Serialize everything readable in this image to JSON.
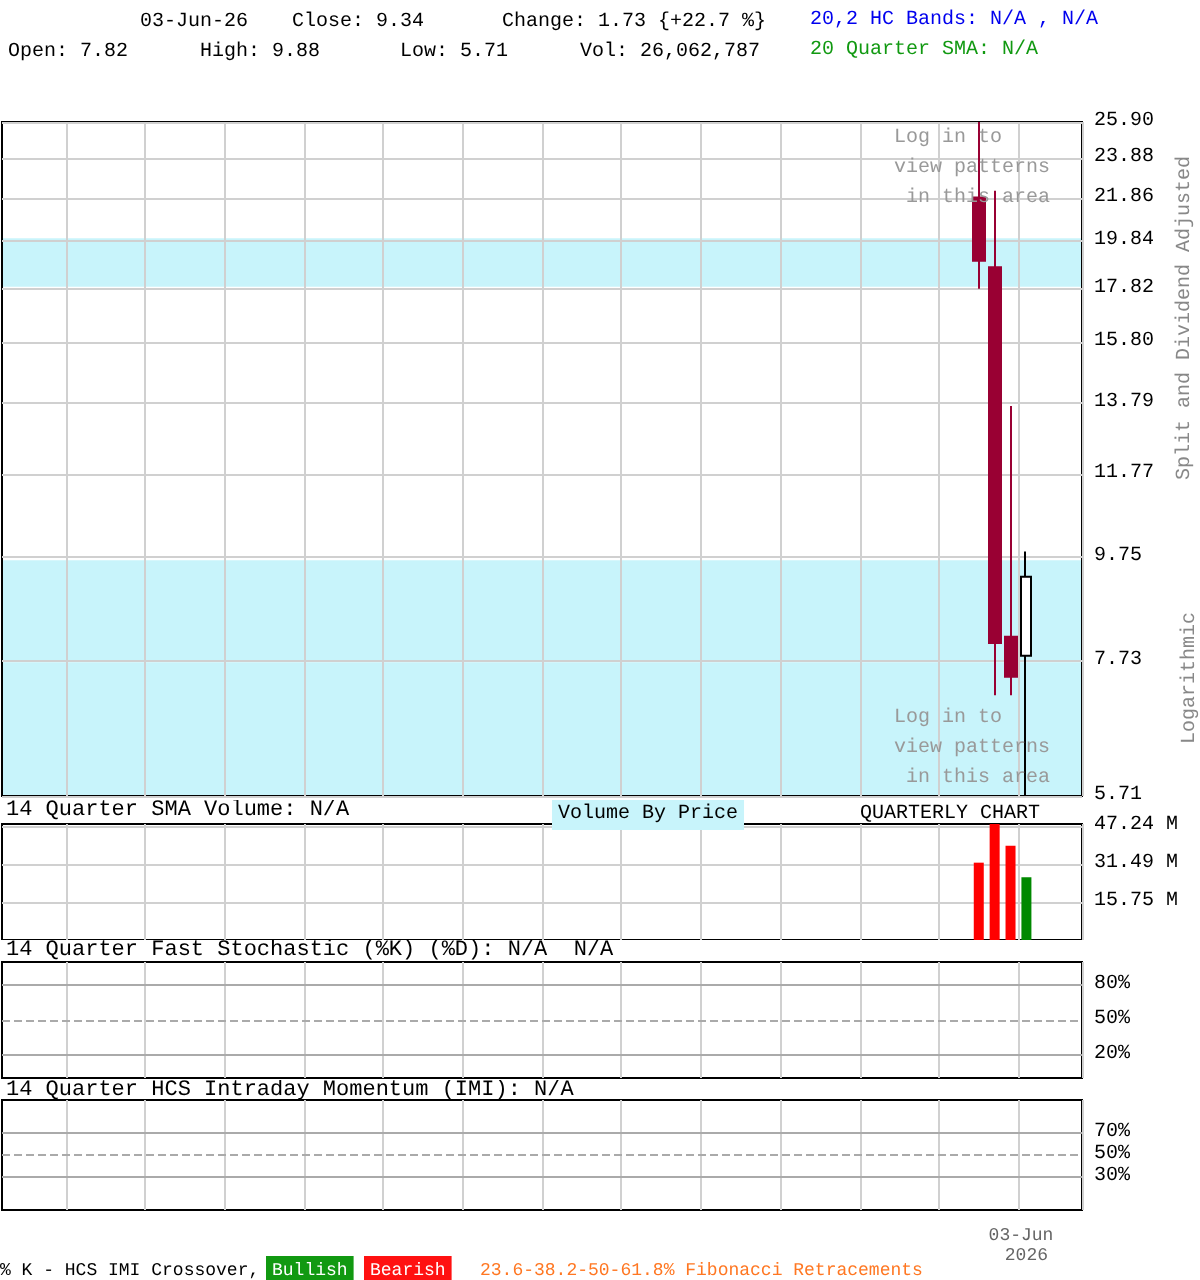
{
  "chart_data": [
    {
      "type": "candlestick",
      "log": true,
      "grid": true,
      "ylabel": "Split and Dividend Adjusted",
      "categories": [
        null,
        null,
        null,
        null,
        null,
        null,
        null,
        null,
        null,
        null,
        null,
        null,
        null,
        null,
        null,
        null,
        null,
        null,
        null,
        null,
        null,
        null,
        null,
        null,
        null,
        null,
        null,
        null,
        null,
        null,
        null,
        null,
        null,
        null,
        null,
        null,
        null,
        null,
        null,
        null,
        null,
        null,
        null,
        null,
        null,
        null,
        null,
        null,
        null,
        null,
        null,
        null,
        null,
        null,
        null,
        null,
        null,
        null,
        null,
        null,
        null,
        null,
        null,
        null,
        null,
        null,
        null,
        null
      ],
      "ohlc": [
        null,
        null,
        null,
        null,
        null,
        null,
        null,
        null,
        null,
        null,
        null,
        null,
        null,
        null,
        null,
        null,
        null,
        null,
        null,
        null,
        null,
        null,
        null,
        null,
        null,
        null,
        null,
        null,
        null,
        null,
        null,
        null,
        null,
        null,
        null,
        null,
        null,
        null,
        null,
        null,
        null,
        null,
        null,
        null,
        null,
        null,
        null,
        null,
        null,
        null,
        null,
        null,
        null,
        null,
        null,
        null,
        null,
        null,
        null,
        null,
        null,
        [
          21.86,
          25.9,
          17.82,
          18.97
        ],
        [
          18.7,
          22.2,
          7.16,
          8.05
        ],
        [
          8.16,
          13.7,
          7.16,
          7.46
        ],
        [
          7.82,
          9.88,
          5.71,
          9.34
        ],
        null,
        null,
        null
      ],
      "colors": [
        null,
        null,
        null,
        null,
        null,
        null,
        null,
        null,
        null,
        null,
        null,
        null,
        null,
        null,
        null,
        null,
        null,
        null,
        null,
        null,
        null,
        null,
        null,
        null,
        null,
        null,
        null,
        null,
        null,
        null,
        null,
        null,
        null,
        null,
        null,
        null,
        null,
        null,
        null,
        null,
        null,
        null,
        null,
        null,
        null,
        null,
        null,
        null,
        null,
        null,
        null,
        null,
        null,
        null,
        null,
        null,
        null,
        null,
        null,
        null,
        null,
        "#990033",
        "#990033",
        "#990033",
        "#ffffff",
        null,
        null,
        null
      ],
      "ylim": [
        5.71,
        25.9
      ],
      "yticks": [
        {
          "value": 5.71,
          "label": "5.71"
        },
        {
          "value": 7.73,
          "label": "7.73"
        },
        {
          "value": 9.75,
          "label": "9.75"
        },
        {
          "value": 11.77,
          "label": "11.77"
        },
        {
          "value": 13.79,
          "label": "13.79"
        },
        {
          "value": 15.8,
          "label": "15.80"
        },
        {
          "value": 17.82,
          "label": "17.82"
        },
        {
          "value": 19.84,
          "label": "19.84"
        },
        {
          "value": 21.86,
          "label": "21.86"
        },
        {
          "value": 23.88,
          "label": "23.88"
        },
        {
          "value": 25.9,
          "label": "25.90"
        }
      ],
      "bands": [
        {
          "axis": "y",
          "from": 17.9,
          "to": 19.96,
          "color": "#c8f4fb"
        },
        {
          "axis": "y",
          "from": 7.71,
          "to": 9.69,
          "color": "#c8f4fb"
        },
        {
          "axis": "y",
          "from": 5.71,
          "to": 7.71,
          "color": "#c8f4fb"
        }
      ],
      "annotations": [
        "03-Jun-26",
        "Close: 9.34",
        "Change: 1.73 {+22.7 %}",
        "Open: 7.82",
        "High: 9.88",
        "Low: 5.71",
        "Vol: 26,062,787",
        "20,2 HC Bands: N/A , N/A",
        "20 Quarter SMA: N/A",
        "Log in to view patterns in this area",
        "Log in to view patterns in this area",
        "Logarithmic"
      ]
    },
    {
      "type": "bar",
      "title": "14 Quarter SMA Volume: N/A",
      "grid": true,
      "categories": [
        null,
        null,
        null,
        null,
        null,
        null,
        null,
        null,
        null,
        null,
        null,
        null,
        null,
        null,
        null,
        null,
        null,
        null,
        null,
        null,
        null,
        null,
        null,
        null,
        null,
        null,
        null,
        null,
        null,
        null,
        null,
        null,
        null,
        null,
        null,
        null,
        null,
        null,
        null,
        null,
        null,
        null,
        null,
        null,
        null,
        null,
        null,
        null,
        null,
        null,
        null,
        null,
        null,
        null,
        null,
        null,
        null,
        null,
        null,
        null,
        null,
        null,
        null,
        null,
        null,
        null,
        null,
        null
      ],
      "values": [
        null,
        null,
        null,
        null,
        null,
        null,
        null,
        null,
        null,
        null,
        null,
        null,
        null,
        null,
        null,
        null,
        null,
        null,
        null,
        null,
        null,
        null,
        null,
        null,
        null,
        null,
        null,
        null,
        null,
        null,
        null,
        null,
        null,
        null,
        null,
        null,
        null,
        null,
        null,
        null,
        null,
        null,
        null,
        null,
        null,
        null,
        null,
        null,
        null,
        null,
        null,
        null,
        null,
        null,
        null,
        null,
        null,
        null,
        null,
        null,
        null,
        32,
        48,
        39,
        26,
        null,
        null,
        null
      ],
      "colors": [
        null,
        null,
        null,
        null,
        null,
        null,
        null,
        null,
        null,
        null,
        null,
        null,
        null,
        null,
        null,
        null,
        null,
        null,
        null,
        null,
        null,
        null,
        null,
        null,
        null,
        null,
        null,
        null,
        null,
        null,
        null,
        null,
        null,
        null,
        null,
        null,
        null,
        null,
        null,
        null,
        null,
        null,
        null,
        null,
        null,
        null,
        null,
        null,
        null,
        null,
        null,
        null,
        null,
        null,
        null,
        null,
        null,
        null,
        null,
        null,
        null,
        "#ff0000",
        "#ff0000",
        "#ff0000",
        "#008800",
        null,
        null,
        null
      ],
      "ylim": [
        0,
        48
      ],
      "yticks": [
        {
          "value": 15.75,
          "label": "15.75 M"
        },
        {
          "value": 31.49,
          "label": "31.49 M"
        },
        {
          "value": 47.24,
          "label": "47.24 M"
        }
      ],
      "annotations": [
        "Volume By Price",
        "QUARTERLY CHART"
      ]
    },
    {
      "type": "line",
      "title": "14 Quarter Fast Stochastic (%K) (%D): N/A  N/A",
      "grid": "x",
      "categories": [
        null,
        null,
        null,
        null,
        null,
        null,
        null,
        null,
        null,
        null,
        null,
        null,
        null,
        null,
        null,
        null,
        null,
        null,
        null,
        null,
        null,
        null,
        null,
        null,
        null,
        null,
        null,
        null,
        null,
        null,
        null,
        null,
        null,
        null,
        null,
        null,
        null,
        null,
        null,
        null,
        null,
        null,
        null,
        null,
        null,
        null,
        null,
        null,
        null,
        null,
        null,
        null,
        null,
        null,
        null,
        null,
        null,
        null,
        null,
        null,
        null,
        null,
        null,
        null,
        null,
        null,
        null,
        null
      ],
      "ylim": [
        0,
        100
      ],
      "yticks": [
        {
          "value": 20,
          "label": "20%"
        },
        {
          "value": 50,
          "label": "50%"
        },
        {
          "value": 80,
          "label": "80%"
        }
      ],
      "ref_lines": [
        {
          "axis": "y",
          "value": 20,
          "color": "#aaaaaa",
          "line_style": "solid"
        },
        {
          "axis": "y",
          "value": 50,
          "color": "#aaaaaa",
          "line_style": "dashed"
        },
        {
          "axis": "y",
          "value": 80,
          "color": "#aaaaaa",
          "line_style": "solid"
        }
      ]
    },
    {
      "type": "line",
      "title": "14 Quarter HCS Intraday Momentum (IMI): N/A",
      "grid": "x",
      "categories": [
        null,
        null,
        null,
        null,
        null,
        null,
        null,
        null,
        null,
        null,
        null,
        null,
        null,
        null,
        null,
        null,
        null,
        null,
        null,
        null,
        null,
        null,
        null,
        null,
        null,
        null,
        null,
        null,
        null,
        null,
        null,
        null,
        null,
        null,
        null,
        null,
        null,
        null,
        null,
        null,
        null,
        null,
        null,
        null,
        null,
        null,
        null,
        null,
        null,
        null,
        null,
        null,
        null,
        null,
        null,
        null,
        null,
        null,
        null,
        null,
        null,
        null,
        null,
        null,
        "03-Jun 2026",
        null,
        null,
        null
      ],
      "ylim": [
        0,
        100
      ],
      "yticks": [
        {
          "value": 30,
          "label": "30%"
        },
        {
          "value": 50,
          "label": "50%"
        },
        {
          "value": 70,
          "label": "70%"
        }
      ],
      "ref_lines": [
        {
          "axis": "y",
          "value": 30,
          "color": "#aaaaaa",
          "line_style": "solid"
        },
        {
          "axis": "y",
          "value": 50,
          "color": "#aaaaaa",
          "line_style": "dashed"
        },
        {
          "axis": "y",
          "value": 70,
          "color": "#aaaaaa",
          "line_style": "solid"
        }
      ],
      "annotations": [
        "% K - HCS IMI Crossover,",
        "Bullish",
        "Bearish",
        "23.6-38.2-50-61.8% Fibonacci Retracements"
      ]
    }
  ]
}
